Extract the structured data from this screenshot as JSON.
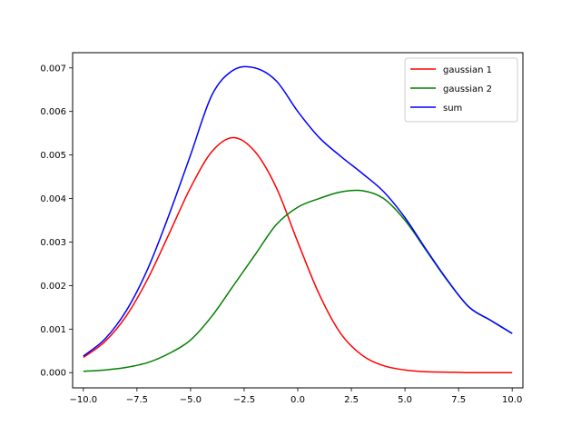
{
  "chart_data": {
    "type": "line",
    "title": "",
    "xlabel": "",
    "ylabel": "",
    "xlim": [
      -10.5,
      10.5
    ],
    "ylim": [
      -0.00035,
      0.00735
    ],
    "grid": false,
    "legend_position": "top-right",
    "x_ticks": [
      -10.0,
      -7.5,
      -5.0,
      -2.5,
      0.0,
      2.5,
      5.0,
      7.5,
      10.0
    ],
    "x_tick_labels": [
      "−10.0",
      "−7.5",
      "−5.0",
      "−2.5",
      "0.0",
      "2.5",
      "5.0",
      "7.5",
      "10.0"
    ],
    "y_ticks": [
      0.0,
      0.001,
      0.002,
      0.003,
      0.004,
      0.005,
      0.006,
      0.007
    ],
    "y_tick_labels": [
      "0.000",
      "0.001",
      "0.002",
      "0.003",
      "0.004",
      "0.005",
      "0.006",
      "0.007"
    ],
    "x": [
      -10,
      -9,
      -8,
      -7,
      -6,
      -5,
      -4,
      -3,
      -2,
      -1,
      0,
      1,
      2,
      3,
      4,
      5,
      6,
      7,
      8,
      9,
      10
    ],
    "series": [
      {
        "name": "gaussian 1",
        "color": "#ff0000",
        "values": [
          0.00035,
          0.00071,
          0.0013,
          0.00215,
          0.00319,
          0.00425,
          0.00508,
          0.0054,
          0.00508,
          0.00425,
          0.003,
          0.0018,
          0.0009,
          0.0004,
          0.00016,
          6e-05,
          2e-05,
          1e-05,
          0.0,
          0.0,
          0.0
        ]
      },
      {
        "name": "gaussian 2",
        "color": "#008000",
        "values": [
          3e-05,
          6e-05,
          0.00012,
          0.00023,
          0.00044,
          0.00075,
          0.0013,
          0.002,
          0.0027,
          0.0034,
          0.0038,
          0.004,
          0.00415,
          0.00418,
          0.004,
          0.0035,
          0.0028,
          0.0021,
          0.0015,
          0.0012,
          0.0009
        ]
      },
      {
        "name": "sum",
        "color": "#0000ff",
        "values": [
          0.00038,
          0.00077,
          0.00142,
          0.00238,
          0.00363,
          0.005,
          0.00638,
          0.00695,
          0.007,
          0.0067,
          0.006,
          0.0054,
          0.00497,
          0.00458,
          0.00416,
          0.00356,
          0.00282,
          0.00211,
          0.0015,
          0.0012,
          0.0009
        ]
      }
    ]
  }
}
